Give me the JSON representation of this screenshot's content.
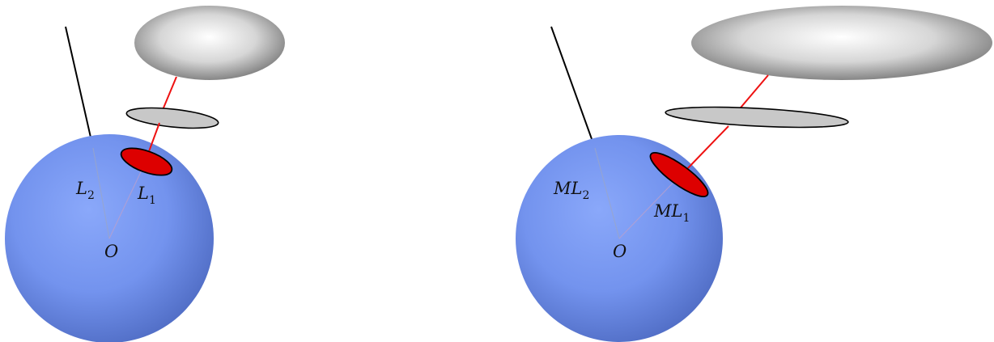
{
  "colors": {
    "sphere": "#6f8fe8",
    "marked_cap": "#dd0000",
    "projection_line": "#ee1111",
    "disc_fill": "#c8c8c8",
    "outline": "#000000"
  },
  "left_diagram": {
    "center_label": "O",
    "line1_label": {
      "base": "L",
      "sub": "1"
    },
    "line2_label": {
      "base": "L",
      "sub": "2"
    }
  },
  "right_diagram": {
    "center_label": "O",
    "line1_label": {
      "base": "ML",
      "sub": "1"
    },
    "line2_label": {
      "base": "ML",
      "sub": "2"
    }
  }
}
